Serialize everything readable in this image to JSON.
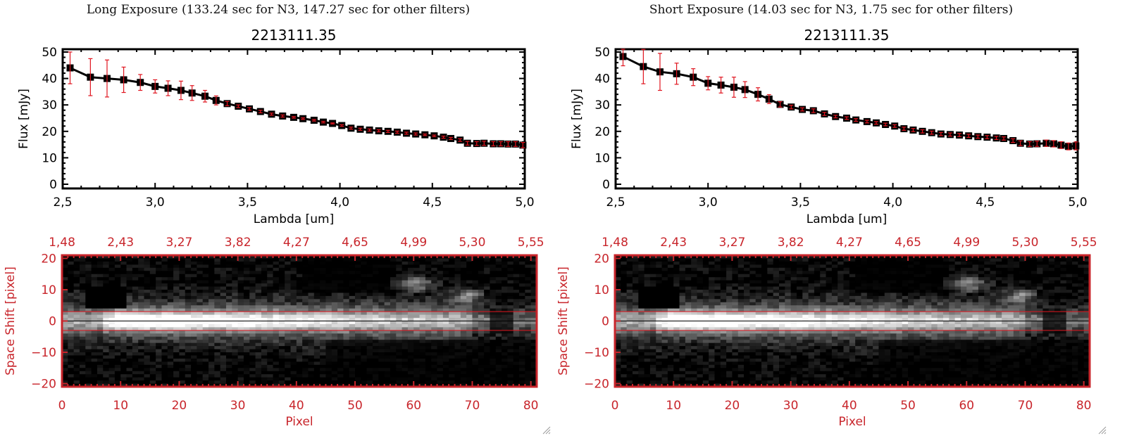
{
  "panels": [
    {
      "id": "long",
      "exposure_title": "Long Exposure (133.24 sec for N3, 147.27 sec for other filters)",
      "spectrum": {
        "title": "2213111.35",
        "xlabel": "Lambda [um]",
        "ylabel": "Flux [mJy]"
      },
      "image": {
        "xlabel": "Pixel",
        "ylabel": "Space Shift [pixel]"
      }
    },
    {
      "id": "short",
      "exposure_title": "Short Exposure (14.03 sec for N3, 1.75 sec for other filters)",
      "spectrum": {
        "title": "2213111.35",
        "xlabel": "Lambda [um]",
        "ylabel": "Flux [mJy]"
      },
      "image": {
        "xlabel": "Pixel",
        "ylabel": "Space Shift [pixel]"
      }
    }
  ],
  "colors": {
    "axis": "#000000",
    "errorbar": "#e0141e",
    "image_axis": "#c8252b",
    "marker": "#000000"
  },
  "chart_data": [
    {
      "type": "line",
      "title": "2213111.35",
      "subtitle": "Long Exposure (133.24 sec for N3, 147.27 sec for other filters)",
      "xlabel": "Lambda [um]",
      "ylabel": "Flux [mJy]",
      "xlim": [
        2.5,
        5.0
      ],
      "ylim": [
        0,
        50
      ],
      "xticks": [
        "2.5",
        "3.0",
        "3.5",
        "4.0",
        "4.5",
        "5.0"
      ],
      "yticks": [
        "0",
        "10",
        "20",
        "30",
        "40",
        "50"
      ],
      "grid": false,
      "series": [
        {
          "name": "flux",
          "x": [
            2.54,
            2.65,
            2.74,
            2.83,
            2.92,
            3.0,
            3.07,
            3.14,
            3.2,
            3.27,
            3.33,
            3.39,
            3.45,
            3.51,
            3.57,
            3.63,
            3.69,
            3.75,
            3.8,
            3.86,
            3.91,
            3.96,
            4.01,
            4.06,
            4.11,
            4.16,
            4.21,
            4.26,
            4.31,
            4.36,
            4.41,
            4.46,
            4.51,
            4.56,
            4.6,
            4.65,
            4.69,
            4.74,
            4.78,
            4.83,
            4.87,
            4.91,
            4.95,
            4.99
          ],
          "y": [
            44.0,
            40.5,
            40.0,
            39.5,
            38.5,
            37.0,
            36.3,
            35.5,
            34.5,
            33.3,
            31.7,
            30.5,
            29.5,
            28.5,
            27.5,
            26.5,
            25.8,
            25.3,
            24.8,
            24.2,
            23.5,
            23.0,
            22.2,
            21.2,
            20.8,
            20.5,
            20.2,
            20.0,
            19.7,
            19.3,
            19.0,
            18.7,
            18.3,
            17.8,
            17.3,
            16.7,
            15.5,
            15.4,
            15.5,
            15.3,
            15.3,
            15.2,
            15.2,
            14.8
          ],
          "yerr": [
            6.0,
            7.0,
            7.0,
            4.8,
            3.0,
            2.5,
            2.8,
            3.5,
            2.8,
            2.2,
            1.7,
            0.8,
            0.5,
            0.5,
            0.5,
            0.4,
            0.4,
            0.3,
            0.3,
            0.3,
            0.3,
            0.2,
            0.3,
            0.4,
            0.4,
            0.4,
            0.4,
            0.4,
            0.4,
            0.4,
            0.4,
            0.3,
            0.3,
            0.4,
            0.4,
            0.5,
            0.7,
            0.7,
            0.8,
            0.8,
            0.8,
            0.9,
            0.9,
            1.0
          ]
        }
      ]
    },
    {
      "type": "line",
      "title": "2213111.35",
      "subtitle": "Short Exposure (14.03 sec for N3, 1.75 sec for other filters)",
      "xlabel": "Lambda [um]",
      "ylabel": "Flux [mJy]",
      "xlim": [
        2.5,
        5.0
      ],
      "ylim": [
        0,
        50
      ],
      "xticks": [
        "2.5",
        "3.0",
        "3.5",
        "4.0",
        "4.5",
        "5.0"
      ],
      "yticks": [
        "0",
        "10",
        "20",
        "30",
        "40",
        "50"
      ],
      "grid": false,
      "series": [
        {
          "name": "flux",
          "x": [
            2.54,
            2.65,
            2.74,
            2.83,
            2.92,
            3.0,
            3.07,
            3.14,
            3.2,
            3.27,
            3.33,
            3.39,
            3.45,
            3.51,
            3.57,
            3.63,
            3.69,
            3.75,
            3.8,
            3.86,
            3.91,
            3.96,
            4.01,
            4.06,
            4.11,
            4.16,
            4.21,
            4.26,
            4.31,
            4.36,
            4.41,
            4.46,
            4.51,
            4.56,
            4.6,
            4.65,
            4.69,
            4.74,
            4.78,
            4.83,
            4.87,
            4.91,
            4.95,
            4.99
          ],
          "y": [
            48.3,
            44.5,
            42.5,
            41.8,
            40.5,
            38.2,
            37.5,
            36.7,
            35.8,
            34.0,
            32.2,
            30.2,
            29.2,
            28.3,
            27.8,
            26.6,
            25.6,
            25.0,
            24.3,
            23.7,
            23.2,
            22.6,
            22.0,
            21.0,
            20.5,
            20.0,
            19.5,
            19.0,
            18.8,
            18.6,
            18.3,
            18.0,
            17.8,
            17.5,
            17.3,
            16.5,
            15.5,
            15.2,
            15.3,
            15.5,
            15.3,
            14.8,
            14.3,
            14.5
          ],
          "yerr": [
            3.5,
            6.5,
            7.0,
            4.0,
            3.2,
            2.5,
            3.0,
            3.8,
            3.0,
            2.5,
            1.7,
            1.0,
            0.7,
            0.6,
            0.7,
            0.6,
            0.5,
            0.5,
            0.5,
            0.5,
            0.5,
            0.5,
            0.5,
            0.6,
            0.6,
            0.6,
            0.6,
            0.6,
            0.6,
            0.6,
            0.6,
            0.6,
            0.6,
            0.6,
            0.6,
            0.7,
            0.9,
            0.9,
            1.0,
            1.2,
            1.2,
            1.3,
            1.3,
            1.5
          ]
        }
      ]
    },
    {
      "type": "heatmap",
      "title": "Long exposure 2D spectrum",
      "xlabel": "Pixel",
      "ylabel": "Space Shift [pixel]",
      "xlim": [
        0,
        81
      ],
      "ylim": [
        -21,
        21
      ],
      "xticks": [
        "0",
        "10",
        "20",
        "30",
        "40",
        "50",
        "60",
        "70",
        "80"
      ],
      "yticks": [
        "-20",
        "-10",
        "0",
        "10",
        "20"
      ],
      "top_axis_ticks": [
        "1.48",
        "2.43",
        "3.27",
        "3.82",
        "4.27",
        "4.65",
        "4.99",
        "5.30",
        "5.55"
      ],
      "aperture_lines": [
        -3,
        3
      ],
      "center_line": 0,
      "colormap": "grayscale"
    },
    {
      "type": "heatmap",
      "title": "Short exposure 2D spectrum",
      "xlabel": "Pixel",
      "ylabel": "Space Shift [pixel]",
      "xlim": [
        0,
        81
      ],
      "ylim": [
        -21,
        21
      ],
      "xticks": [
        "0",
        "10",
        "20",
        "30",
        "40",
        "50",
        "60",
        "70",
        "80"
      ],
      "yticks": [
        "-20",
        "-10",
        "0",
        "10",
        "20"
      ],
      "top_axis_ticks": [
        "1.48",
        "2.43",
        "3.27",
        "3.82",
        "4.27",
        "4.65",
        "4.99",
        "5.30",
        "5.55"
      ],
      "aperture_lines": [
        -3,
        3
      ],
      "center_line": 0,
      "colormap": "grayscale"
    }
  ]
}
